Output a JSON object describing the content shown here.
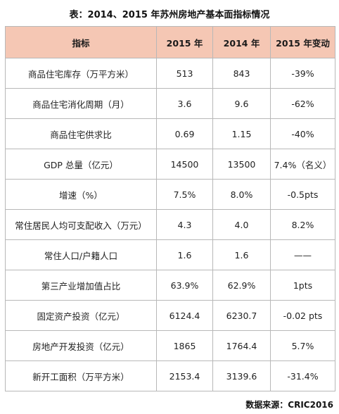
{
  "title": "表：2014、2015 年苏州房地产基本面指标情况",
  "table": {
    "headers": [
      "指标",
      "2015 年",
      "2014 年",
      "2015 年变动"
    ],
    "rows": [
      [
        "商品住宅库存（万平方米）",
        "513",
        "843",
        "-39%"
      ],
      [
        "商品住宅消化周期（月）",
        "3.6",
        "9.6",
        "-62%"
      ],
      [
        "商品住宅供求比",
        "0.69",
        "1.15",
        "-40%"
      ],
      [
        "GDP 总量（亿元）",
        "14500",
        "13500",
        "7.4%（名义）"
      ],
      [
        "增速（%）",
        "7.5%",
        "8.0%",
        "-0.5pts"
      ],
      [
        "常住居民人均可支配收入（万元）",
        "4.3",
        "4.0",
        "8.2%"
      ],
      [
        "常住人口/户籍人口",
        "1.6",
        "1.6",
        "——"
      ],
      [
        "第三产业增加值占比",
        "63.9%",
        "62.9%",
        "1pts"
      ],
      [
        "固定资产投资（亿元）",
        "6124.4",
        "6230.7",
        "-0.02 pts"
      ],
      [
        "房地产开发投资（亿元）",
        "1865",
        "1764.4",
        "5.7%"
      ],
      [
        "新开工面积（万平方米）",
        "2153.4",
        "3139.6",
        "-31.4%"
      ]
    ]
  },
  "source": "数据来源：CRIC2016"
}
